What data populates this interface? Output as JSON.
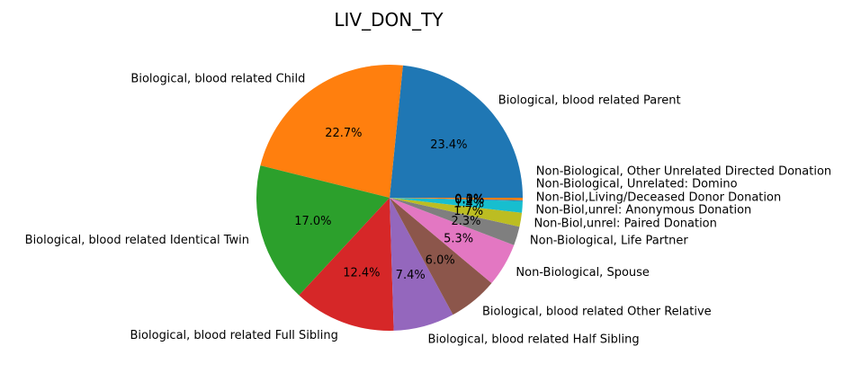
{
  "chart_data": {
    "type": "pie",
    "title": "LIV_DON_TY",
    "slices": [
      {
        "label": "Biological, blood related Parent",
        "value": 23.4,
        "pct_label": "23.4%",
        "color": "#1f77b4"
      },
      {
        "label": "Biological, blood related Child",
        "value": 22.7,
        "pct_label": "22.7%",
        "color": "#ff7f0e"
      },
      {
        "label": "Biological, blood related Identical Twin",
        "value": 17.0,
        "pct_label": "17.0%",
        "color": "#2ca02c"
      },
      {
        "label": "Biological, blood related Full Sibling",
        "value": 12.4,
        "pct_label": "12.4%",
        "color": "#d62728"
      },
      {
        "label": "Biological, blood related Half Sibling",
        "value": 7.4,
        "pct_label": "7.4%",
        "color": "#9467bd"
      },
      {
        "label": "Biological, blood related Other Relative",
        "value": 6.0,
        "pct_label": "6.0%",
        "color": "#8c564b"
      },
      {
        "label": "Non-Biological, Spouse",
        "value": 5.3,
        "pct_label": "5.3%",
        "color": "#e377c2"
      },
      {
        "label": "Non-Biological, Life Partner",
        "value": 2.3,
        "pct_label": "2.3%",
        "color": "#7f7f7f"
      },
      {
        "label": "Non-Biol,unrel: Paired Donation",
        "value": 1.7,
        "pct_label": "1.7%",
        "color": "#bcbd22"
      },
      {
        "label": "Non-Biol,unrel: Anonymous Donation",
        "value": 1.4,
        "pct_label": "1.4%",
        "color": "#17becf"
      },
      {
        "label": "Non-Biol,Living/Deceased Donor Donation",
        "value": 0.1,
        "pct_label": "0.1%",
        "color": "#1f77b4"
      },
      {
        "label": "Non-Biological, Unrelated: Domino",
        "value": 0.0,
        "pct_label": "0.0%",
        "color": "#ff7f0e"
      },
      {
        "label": "Non-Biological, Other Unrelated Directed Donation",
        "value": 0.3,
        "pct_label": "0.3%",
        "color": "#ff7f0e"
      }
    ]
  }
}
